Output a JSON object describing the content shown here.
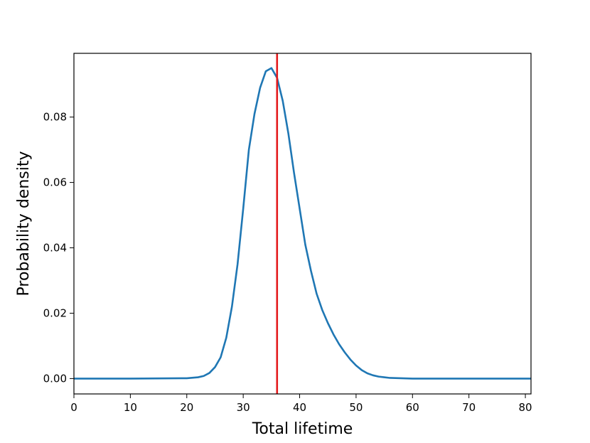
{
  "chart_data": {
    "type": "line",
    "title": "",
    "xlabel": "Total lifetime",
    "ylabel": "Probability density",
    "xlim": [
      0,
      81
    ],
    "ylim": [
      -0.0047,
      0.0995
    ],
    "xticks": [
      0,
      10,
      20,
      30,
      40,
      50,
      60,
      70,
      80
    ],
    "xtick_labels": [
      "0",
      "10",
      "20",
      "30",
      "40",
      "50",
      "60",
      "70",
      "80"
    ],
    "yticks": [
      0.0,
      0.02,
      0.04,
      0.06,
      0.08
    ],
    "ytick_labels": [
      "0.00",
      "0.02",
      "0.04",
      "0.06",
      "0.08"
    ],
    "grid": false,
    "series": [
      {
        "color": "#1f77b4",
        "x": [
          0,
          10,
          20,
          22,
          23,
          24,
          25,
          26,
          27,
          28,
          29,
          30,
          31,
          32,
          33,
          34,
          35,
          36,
          37,
          38,
          39,
          40,
          41,
          42,
          43,
          44,
          45,
          46,
          47,
          48,
          49,
          50,
          51,
          52,
          53,
          54,
          55,
          56,
          58,
          60,
          65,
          70,
          81
        ],
        "y": [
          0.0,
          0.0,
          0.0001,
          0.0004,
          0.0008,
          0.0017,
          0.0035,
          0.0065,
          0.0125,
          0.022,
          0.035,
          0.052,
          0.07,
          0.081,
          0.089,
          0.094,
          0.095,
          0.092,
          0.085,
          0.075,
          0.063,
          0.052,
          0.041,
          0.033,
          0.026,
          0.021,
          0.017,
          0.0135,
          0.0105,
          0.008,
          0.0058,
          0.004,
          0.0026,
          0.0016,
          0.001,
          0.0006,
          0.0004,
          0.0002,
          0.0001,
          0.0,
          0.0,
          0.0,
          0.0
        ]
      }
    ],
    "vline": {
      "x": 36,
      "color": "#e41a1c"
    }
  }
}
